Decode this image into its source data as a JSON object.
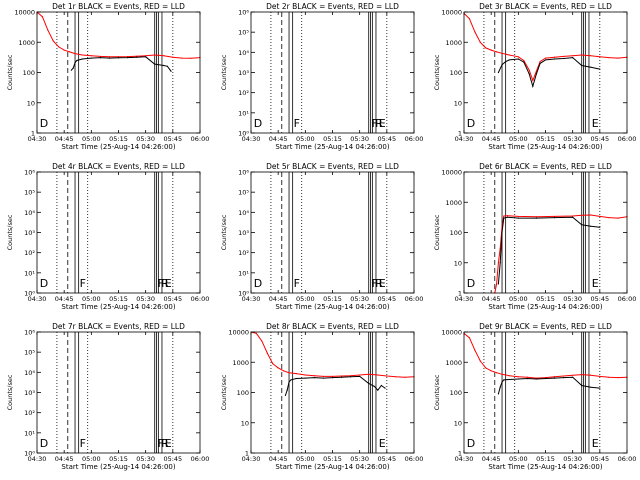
{
  "figure": {
    "xticks": [
      "04:30",
      "04:45",
      "05:00",
      "05:15",
      "05:30",
      "05:45",
      "06:00"
    ],
    "xlabel": "Start Time (25-Aug-14 04:26:00)",
    "ylabel": "Counts/sec",
    "colors": {
      "events": "#000000",
      "lld": "#ff0000",
      "axis": "#000000"
    }
  },
  "chart_data": [
    {
      "type": "line",
      "title": "Det 1r BLACK = Events, RED = LLD",
      "ylabel": "Counts/sec",
      "xlabel": "Start Time (25-Aug-14 04:26:00)",
      "yscale": "log",
      "ylim": [
        1,
        10000
      ],
      "yticks": [
        "1",
        "10",
        "100",
        "1000",
        "10000"
      ],
      "xlim": [
        "04:30",
        "06:00"
      ],
      "dotted_lines": [
        "04:41",
        "04:58",
        "05:45"
      ],
      "dashed_lines": [
        "04:47"
      ],
      "solid_lines": [
        "04:51",
        "04:53",
        "05:35",
        "05:36",
        "05:37",
        "05:39"
      ],
      "markers": [
        {
          "x": "04:31",
          "label": "D"
        }
      ],
      "series": [
        {
          "name": "LLD",
          "color": "#ff0000",
          "x": [
            "04:30",
            "04:33",
            "04:36",
            "04:39",
            "04:42",
            "04:45",
            "04:48",
            "04:51",
            "04:55",
            "05:00",
            "05:05",
            "05:10",
            "05:15",
            "05:20",
            "05:25",
            "05:30",
            "05:35",
            "05:40",
            "05:45",
            "05:50",
            "05:55",
            "06:00"
          ],
          "values": [
            10000,
            7000,
            2500,
            1100,
            700,
            550,
            480,
            420,
            380,
            360,
            340,
            330,
            330,
            335,
            345,
            360,
            380,
            360,
            320,
            300,
            295,
            310
          ]
        },
        {
          "name": "Events",
          "color": "#000000",
          "x": [
            "04:49",
            "04:50",
            "04:51",
            "04:52",
            "04:55",
            "05:00",
            "05:05",
            "05:10",
            "05:15",
            "05:20",
            "05:25",
            "05:30",
            "05:35",
            "05:40",
            "05:42",
            "05:44"
          ],
          "values": [
            120,
            140,
            210,
            250,
            280,
            300,
            310,
            300,
            305,
            310,
            320,
            330,
            190,
            170,
            160,
            110
          ]
        }
      ]
    },
    {
      "type": "line",
      "title": "Det 2r BLACK = Events, RED = LLD",
      "ylabel": "Counts/sec",
      "xlabel": "Start Time (25-Aug-14 04:26:00)",
      "yscale": "log",
      "ylim": [
        1,
        1000000
      ],
      "yticks": [
        "10⁰",
        "10¹",
        "10²",
        "10³",
        "10⁴",
        "10⁵",
        "10⁶"
      ],
      "xlim": [
        "04:30",
        "06:00"
      ],
      "dotted_lines": [
        "04:41",
        "04:58",
        "05:45"
      ],
      "dashed_lines": [
        "04:47"
      ],
      "solid_lines": [
        "04:51",
        "04:53",
        "05:35",
        "05:36",
        "05:37",
        "05:39"
      ],
      "markers": [
        {
          "x": "04:31",
          "label": "D"
        },
        {
          "x": "04:53",
          "label": "F"
        },
        {
          "x": "05:36",
          "label": "F"
        },
        {
          "x": "05:38",
          "label": "R"
        },
        {
          "x": "05:40",
          "label": "E"
        }
      ],
      "series": []
    },
    {
      "type": "line",
      "title": "Det 3r BLACK = Events, RED = LLD",
      "ylabel": "Counts/sec",
      "xlabel": "Start Time (25-Aug-14 04:26:00)",
      "yscale": "log",
      "ylim": [
        1,
        10000
      ],
      "yticks": [
        "1",
        "10",
        "100",
        "1000",
        "10000"
      ],
      "xlim": [
        "04:30",
        "06:00"
      ],
      "dotted_lines": [
        "04:41",
        "04:58",
        "05:45"
      ],
      "dashed_lines": [
        "04:47"
      ],
      "solid_lines": [
        "04:51",
        "04:53",
        "05:35",
        "05:36",
        "05:37",
        "05:39"
      ],
      "markers": [
        {
          "x": "04:31",
          "label": "D"
        },
        {
          "x": "05:40",
          "label": "E"
        }
      ],
      "series": [
        {
          "name": "LLD",
          "color": "#ff0000",
          "x": [
            "04:30",
            "04:33",
            "04:36",
            "04:39",
            "04:42",
            "04:45",
            "04:48",
            "04:51",
            "04:55",
            "05:00",
            "05:03",
            "05:06",
            "05:08",
            "05:10",
            "05:12",
            "05:15",
            "05:20",
            "05:25",
            "05:30",
            "05:35",
            "05:40",
            "05:45",
            "05:50",
            "05:55",
            "06:00"
          ],
          "values": [
            9000,
            6000,
            2200,
            1000,
            650,
            550,
            480,
            430,
            380,
            330,
            250,
            120,
            55,
            110,
            230,
            300,
            320,
            340,
            360,
            380,
            360,
            330,
            310,
            300,
            320
          ]
        },
        {
          "name": "Events",
          "color": "#000000",
          "x": [
            "04:49",
            "04:51",
            "04:53",
            "04:55",
            "05:00",
            "05:03",
            "05:06",
            "05:08",
            "05:10",
            "05:12",
            "05:15",
            "05:20",
            "05:25",
            "05:30",
            "05:35",
            "05:40",
            "05:45"
          ],
          "values": [
            100,
            180,
            230,
            260,
            280,
            220,
            90,
            35,
            90,
            200,
            260,
            280,
            290,
            310,
            170,
            150,
            130
          ]
        }
      ]
    },
    {
      "type": "line",
      "title": "Det 4r BLACK = Events, RED = LLD",
      "ylabel": "Counts/sec",
      "xlabel": "Start Time (25-Aug-14 04:26:00)",
      "yscale": "log",
      "ylim": [
        1,
        1000000
      ],
      "yticks": [
        "10⁰",
        "10¹",
        "10²",
        "10³",
        "10⁴",
        "10⁵",
        "10⁶"
      ],
      "xlim": [
        "04:30",
        "06:00"
      ],
      "dotted_lines": [
        "04:41",
        "04:58",
        "05:45"
      ],
      "dashed_lines": [
        "04:47"
      ],
      "solid_lines": [
        "04:51",
        "04:53",
        "05:35",
        "05:36",
        "05:37",
        "05:39"
      ],
      "markers": [
        {
          "x": "04:31",
          "label": "D"
        },
        {
          "x": "04:53",
          "label": "F"
        },
        {
          "x": "05:36",
          "label": "F"
        },
        {
          "x": "05:38",
          "label": "R"
        },
        {
          "x": "05:40",
          "label": "E"
        }
      ],
      "series": []
    },
    {
      "type": "line",
      "title": "Det 5r BLACK = Events, RED = LLD",
      "ylabel": "Counts/sec",
      "xlabel": "Start Time (25-Aug-14 04:26:00)",
      "yscale": "log",
      "ylim": [
        1,
        1000000
      ],
      "yticks": [
        "10⁰",
        "10¹",
        "10²",
        "10³",
        "10⁴",
        "10⁵",
        "10⁶"
      ],
      "xlim": [
        "04:30",
        "06:00"
      ],
      "dotted_lines": [
        "04:41",
        "04:58",
        "05:45"
      ],
      "dashed_lines": [
        "04:47"
      ],
      "solid_lines": [
        "04:51",
        "04:53",
        "05:35",
        "05:36",
        "05:37",
        "05:39"
      ],
      "markers": [
        {
          "x": "04:31",
          "label": "D"
        },
        {
          "x": "04:53",
          "label": "F"
        },
        {
          "x": "05:36",
          "label": "F"
        },
        {
          "x": "05:38",
          "label": "R"
        },
        {
          "x": "05:40",
          "label": "E"
        }
      ],
      "series": []
    },
    {
      "type": "line",
      "title": "Det 6r BLACK = Events, RED = LLD",
      "ylabel": "Counts/sec",
      "xlabel": "Start Time (25-Aug-14 04:26:00)",
      "yscale": "log",
      "ylim": [
        1,
        10000
      ],
      "yticks": [
        "1",
        "10",
        "100",
        "1000",
        "10000"
      ],
      "xlim": [
        "04:30",
        "06:00"
      ],
      "dotted_lines": [
        "04:41",
        "04:58",
        "05:45"
      ],
      "dashed_lines": [
        "04:47"
      ],
      "solid_lines": [
        "04:51",
        "04:53",
        "05:35",
        "05:36",
        "05:37",
        "05:39"
      ],
      "markers": [
        {
          "x": "04:31",
          "label": "D"
        },
        {
          "x": "05:40",
          "label": "E"
        }
      ],
      "series": [
        {
          "name": "LLD",
          "color": "#ff0000",
          "x": [
            "04:47",
            "04:48",
            "04:49",
            "04:50",
            "04:51",
            "04:52",
            "04:54",
            "05:00",
            "05:10",
            "05:20",
            "05:30",
            "05:35",
            "05:40",
            "05:45",
            "05:50",
            "05:55",
            "06:00"
          ],
          "values": [
            1,
            2,
            10,
            30,
            150,
            350,
            360,
            340,
            330,
            340,
            350,
            370,
            380,
            340,
            310,
            300,
            330
          ]
        },
        {
          "name": "Events",
          "color": "#000000",
          "x": [
            "04:49",
            "04:50",
            "04:51",
            "04:52",
            "04:54",
            "05:00",
            "05:10",
            "05:20",
            "05:30",
            "05:35",
            "05:40",
            "05:45"
          ],
          "values": [
            2,
            10,
            100,
            300,
            320,
            300,
            300,
            310,
            320,
            180,
            160,
            150
          ]
        }
      ]
    },
    {
      "type": "line",
      "title": "Det 7r BLACK = Events, RED = LLD",
      "ylabel": "Counts/sec",
      "xlabel": "Start Time (25-Aug-14 04:26:00)",
      "yscale": "log",
      "ylim": [
        1,
        1000000
      ],
      "yticks": [
        "10⁰",
        "10¹",
        "10²",
        "10³",
        "10⁴",
        "10⁵",
        "10⁶"
      ],
      "xlim": [
        "04:30",
        "06:00"
      ],
      "dotted_lines": [
        "04:41",
        "04:58",
        "05:45"
      ],
      "dashed_lines": [
        "04:47"
      ],
      "solid_lines": [
        "04:51",
        "04:53",
        "05:35",
        "05:36",
        "05:37",
        "05:39"
      ],
      "markers": [
        {
          "x": "04:31",
          "label": "D"
        },
        {
          "x": "04:53",
          "label": "F"
        },
        {
          "x": "05:36",
          "label": "F"
        },
        {
          "x": "05:38",
          "label": "R"
        },
        {
          "x": "05:40",
          "label": "E"
        }
      ],
      "series": []
    },
    {
      "type": "line",
      "title": "Det 8r BLACK = Events, RED = LLD",
      "ylabel": "Counts/sec",
      "xlabel": "Start Time (25-Aug-14 04:26:00)",
      "yscale": "log",
      "ylim": [
        1,
        10000
      ],
      "yticks": [
        "1",
        "10",
        "100",
        "1000",
        "10000"
      ],
      "xlim": [
        "04:30",
        "06:00"
      ],
      "dotted_lines": [
        "04:41",
        "04:58",
        "05:45"
      ],
      "dashed_lines": [
        "04:47"
      ],
      "solid_lines": [
        "04:51",
        "04:53",
        "05:35",
        "05:36",
        "05:37",
        "05:39"
      ],
      "markers": [
        {
          "x": "05:40",
          "label": "E"
        }
      ],
      "series": [
        {
          "name": "LLD",
          "color": "#ff0000",
          "x": [
            "04:30",
            "04:33",
            "04:36",
            "04:39",
            "04:42",
            "04:45",
            "04:48",
            "04:51",
            "04:55",
            "05:00",
            "05:05",
            "05:10",
            "05:15",
            "05:20",
            "05:25",
            "05:30",
            "05:35",
            "05:40",
            "05:45",
            "05:50",
            "05:55",
            "06:00"
          ],
          "values": [
            10000,
            9000,
            5000,
            2000,
            900,
            650,
            520,
            450,
            420,
            380,
            360,
            340,
            340,
            350,
            360,
            380,
            400,
            380,
            350,
            330,
            320,
            330
          ]
        },
        {
          "name": "Events",
          "color": "#000000",
          "x": [
            "04:49",
            "04:50",
            "04:51",
            "04:52",
            "04:55",
            "05:00",
            "05:05",
            "05:10",
            "05:15",
            "05:20",
            "05:25",
            "05:30",
            "05:35",
            "05:38",
            "05:40",
            "05:42",
            "05:44"
          ],
          "values": [
            80,
            120,
            220,
            260,
            290,
            300,
            310,
            300,
            310,
            320,
            330,
            340,
            200,
            160,
            120,
            170,
            140
          ]
        }
      ]
    },
    {
      "type": "line",
      "title": "Det 9r BLACK = Events, RED = LLD",
      "ylabel": "Counts/sec",
      "xlabel": "Start Time (25-Aug-14 04:26:00)",
      "yscale": "log",
      "ylim": [
        1,
        10000
      ],
      "yticks": [
        "1",
        "10",
        "100",
        "1000",
        "10000"
      ],
      "xlim": [
        "04:30",
        "06:00"
      ],
      "dotted_lines": [
        "04:41",
        "04:58",
        "05:45"
      ],
      "dashed_lines": [
        "04:47"
      ],
      "solid_lines": [
        "04:51",
        "04:53",
        "05:35",
        "05:36",
        "05:37",
        "05:39"
      ],
      "markers": [
        {
          "x": "04:31",
          "label": "D"
        },
        {
          "x": "05:40",
          "label": "E"
        }
      ],
      "series": [
        {
          "name": "LLD",
          "color": "#ff0000",
          "x": [
            "04:30",
            "04:33",
            "04:36",
            "04:39",
            "04:42",
            "04:45",
            "04:48",
            "04:51",
            "04:55",
            "05:00",
            "05:05",
            "05:10",
            "05:15",
            "05:20",
            "05:25",
            "05:30",
            "05:35",
            "05:40",
            "05:45",
            "05:50",
            "05:55",
            "06:00"
          ],
          "values": [
            9000,
            6500,
            2500,
            1100,
            650,
            520,
            450,
            400,
            360,
            330,
            320,
            300,
            310,
            330,
            350,
            370,
            390,
            370,
            340,
            320,
            310,
            320
          ]
        },
        {
          "name": "Events",
          "color": "#000000",
          "x": [
            "04:49",
            "04:50",
            "04:51",
            "04:52",
            "04:55",
            "05:00",
            "05:05",
            "05:10",
            "05:15",
            "05:20",
            "05:25",
            "05:30",
            "05:35",
            "05:40",
            "05:45"
          ],
          "values": [
            90,
            150,
            220,
            260,
            270,
            280,
            290,
            280,
            290,
            300,
            310,
            320,
            170,
            150,
            140
          ]
        }
      ]
    }
  ]
}
